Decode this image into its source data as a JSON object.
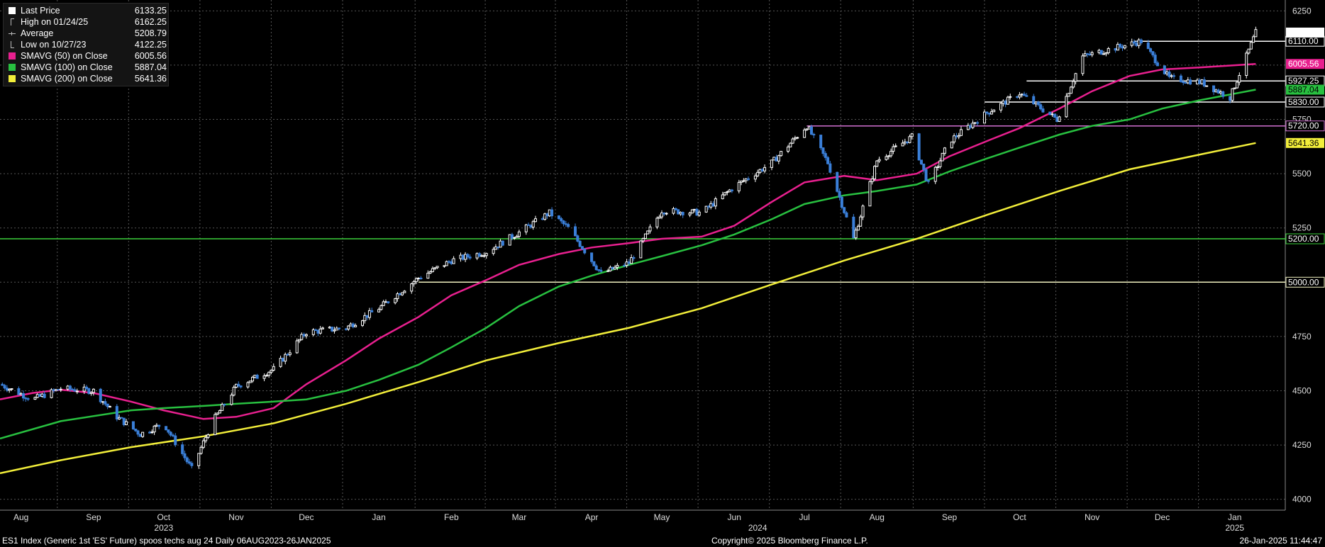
{
  "legend": {
    "items": [
      {
        "label": "Last Price",
        "value": "6133.25",
        "symbol": "square",
        "color": "#ffffff"
      },
      {
        "label": "High on 01/24/25",
        "value": "6162.25",
        "symbol": "high-tick",
        "color": "#bbbbbb"
      },
      {
        "label": "Average",
        "value": "5208.79",
        "symbol": "avg-tick",
        "color": "#bbbbbb"
      },
      {
        "label": "Low on 10/27/23",
        "value": "4122.25",
        "symbol": "low-tick",
        "color": "#bbbbbb"
      },
      {
        "label": "SMAVG (50)  on Close",
        "value": "6005.56",
        "symbol": "square",
        "color": "#e8208f"
      },
      {
        "label": "SMAVG (100)  on Close",
        "value": "5887.04",
        "symbol": "square",
        "color": "#28c040"
      },
      {
        "label": "SMAVG (200)  on Close",
        "value": "5641.36",
        "symbol": "square",
        "color": "#f2ee3a"
      }
    ]
  },
  "footer": {
    "left": "ES1 Index (Generic 1st 'ES' Future) spoos techs aug 24  Daily 06AUG2023-26JAN2025",
    "center": "Copyright© 2025 Bloomberg Finance L.P.",
    "right": "26-Jan-2025 11:44:47"
  },
  "chart_data": {
    "type": "line",
    "grid": true,
    "ylim": [
      3950,
      6300
    ],
    "yticks": [
      4000,
      4250,
      4500,
      4750,
      5000,
      5250,
      5500,
      5750,
      6000,
      6250
    ],
    "ytick_labels": [
      "4000",
      "4250",
      "4500",
      "4750",
      "5000",
      "5250",
      "5500",
      "5750",
      "6000",
      "6250"
    ],
    "xlim": [
      "2023-08-06",
      "2025-01-26"
    ],
    "month_labels": [
      {
        "label": "Aug",
        "date": "2023-08-15"
      },
      {
        "label": "Sep",
        "date": "2023-09-15"
      },
      {
        "label": "Oct",
        "date": "2023-10-15"
      },
      {
        "label": "Nov",
        "date": "2023-11-15"
      },
      {
        "label": "Dec",
        "date": "2023-12-15"
      },
      {
        "label": "Jan",
        "date": "2024-01-15"
      },
      {
        "label": "Feb",
        "date": "2024-02-15"
      },
      {
        "label": "Mar",
        "date": "2024-03-15"
      },
      {
        "label": "Apr",
        "date": "2024-04-15"
      },
      {
        "label": "May",
        "date": "2024-05-15"
      },
      {
        "label": "Jun",
        "date": "2024-06-15"
      },
      {
        "label": "Jul",
        "date": "2024-07-15"
      },
      {
        "label": "Aug",
        "date": "2024-08-15"
      },
      {
        "label": "Sep",
        "date": "2024-09-15"
      },
      {
        "label": "Oct",
        "date": "2024-10-15"
      },
      {
        "label": "Nov",
        "date": "2024-11-15"
      },
      {
        "label": "Dec",
        "date": "2024-12-15"
      },
      {
        "label": "Jan",
        "date": "2025-01-15"
      }
    ],
    "year_labels": [
      {
        "label": "2023",
        "date": "2023-10-15"
      },
      {
        "label": "2024",
        "date": "2024-06-25"
      },
      {
        "label": "2025",
        "date": "2025-01-15"
      }
    ],
    "horizontal_levels": [
      {
        "value": 6110.0,
        "label": "6110.00",
        "color": "#ffffff",
        "start": "2024-12-03"
      },
      {
        "value": 5927.25,
        "label": "5927.25",
        "color": "#ffffff",
        "start": "2024-10-18"
      },
      {
        "value": 5830.0,
        "label": "5830.00",
        "color": "#ffffff",
        "start": "2024-09-30"
      },
      {
        "value": 5720.0,
        "label": "5720.00",
        "color": "#d070d0",
        "start": "2024-07-16"
      },
      {
        "value": 5200.0,
        "label": "5200.00",
        "color": "#3cd03c",
        "start": "2023-08-06"
      },
      {
        "value": 5000.0,
        "label": "5000.00",
        "color": "#f0f0c0",
        "start": "2024-02-01"
      }
    ],
    "right_badges": [
      {
        "value": 6005.56,
        "label": "6005.56",
        "bg": "#e8208f",
        "fg": "#ffffff"
      },
      {
        "value": 5887.04,
        "label": "5887.04",
        "bg": "#28c040",
        "fg": "#000000"
      },
      {
        "value": 5641.36,
        "label": "5641.36",
        "bg": "#f2ee3a",
        "fg": "#000000"
      }
    ],
    "series": [
      {
        "name": "Last Price",
        "style": "candle",
        "color_up": "#ffffff",
        "color_down": "#3a7fd8",
        "x": [
          "2023-08-06",
          "2023-08-20",
          "2023-09-01",
          "2023-09-15",
          "2023-09-25",
          "2023-10-05",
          "2023-10-15",
          "2023-10-27",
          "2023-11-05",
          "2023-11-15",
          "2023-12-01",
          "2023-12-15",
          "2024-01-01",
          "2024-01-15",
          "2024-02-01",
          "2024-02-15",
          "2024-03-01",
          "2024-03-15",
          "2024-03-28",
          "2024-04-05",
          "2024-04-19",
          "2024-05-01",
          "2024-05-15",
          "2024-06-01",
          "2024-06-15",
          "2024-07-01",
          "2024-07-16",
          "2024-07-25",
          "2024-08-05",
          "2024-08-15",
          "2024-08-30",
          "2024-09-06",
          "2024-09-15",
          "2024-10-01",
          "2024-10-15",
          "2024-10-31",
          "2024-11-11",
          "2024-11-25",
          "2024-12-06",
          "2024-12-18",
          "2025-01-01",
          "2025-01-13",
          "2025-01-24"
        ],
        "values": [
          4530,
          4460,
          4510,
          4500,
          4380,
          4300,
          4350,
          4140,
          4360,
          4520,
          4600,
          4770,
          4790,
          4880,
          5020,
          5100,
          5140,
          5230,
          5320,
          5250,
          5040,
          5090,
          5330,
          5320,
          5440,
          5550,
          5720,
          5550,
          5200,
          5560,
          5670,
          5450,
          5650,
          5780,
          5870,
          5750,
          6040,
          6080,
          6110,
          5940,
          5920,
          5850,
          6150
        ]
      },
      {
        "name": "SMAVG (50)  on Close",
        "style": "line",
        "color": "#e8208f",
        "x": [
          "2023-08-06",
          "2023-08-20",
          "2023-09-01",
          "2023-09-15",
          "2023-10-01",
          "2023-10-15",
          "2023-11-01",
          "2023-11-15",
          "2023-12-01",
          "2023-12-15",
          "2024-01-01",
          "2024-01-15",
          "2024-02-01",
          "2024-02-15",
          "2024-03-01",
          "2024-03-15",
          "2024-04-01",
          "2024-04-15",
          "2024-05-01",
          "2024-05-15",
          "2024-06-01",
          "2024-06-15",
          "2024-07-01",
          "2024-07-15",
          "2024-08-01",
          "2024-08-15",
          "2024-09-01",
          "2024-09-15",
          "2024-10-01",
          "2024-10-15",
          "2024-11-01",
          "2024-11-15",
          "2024-12-01",
          "2024-12-15",
          "2025-01-01",
          "2025-01-24"
        ],
        "values": [
          4460,
          4490,
          4505,
          4490,
          4450,
          4410,
          4370,
          4380,
          4420,
          4530,
          4640,
          4740,
          4840,
          4940,
          5010,
          5080,
          5130,
          5160,
          5180,
          5200,
          5210,
          5260,
          5370,
          5460,
          5490,
          5470,
          5500,
          5580,
          5650,
          5710,
          5800,
          5880,
          5950,
          5980,
          5990,
          6005.56
        ]
      },
      {
        "name": "SMAVG (100)  on Close",
        "style": "line",
        "color": "#28c040",
        "x": [
          "2023-08-06",
          "2023-09-01",
          "2023-10-01",
          "2023-10-15",
          "2023-11-01",
          "2023-11-15",
          "2023-12-01",
          "2023-12-15",
          "2024-01-01",
          "2024-01-15",
          "2024-02-01",
          "2024-02-15",
          "2024-03-01",
          "2024-03-15",
          "2024-04-01",
          "2024-04-15",
          "2024-05-01",
          "2024-05-15",
          "2024-06-01",
          "2024-06-15",
          "2024-07-01",
          "2024-07-15",
          "2024-08-01",
          "2024-08-15",
          "2024-09-01",
          "2024-09-15",
          "2024-10-01",
          "2024-10-15",
          "2024-11-01",
          "2024-11-15",
          "2024-12-01",
          "2024-12-15",
          "2025-01-01",
          "2025-01-24"
        ],
        "values": [
          4280,
          4360,
          4410,
          4420,
          4430,
          4440,
          4450,
          4460,
          4500,
          4550,
          4620,
          4700,
          4790,
          4890,
          4980,
          5030,
          5080,
          5120,
          5170,
          5220,
          5290,
          5360,
          5400,
          5420,
          5450,
          5510,
          5570,
          5620,
          5680,
          5720,
          5750,
          5800,
          5840,
          5887.04
        ]
      },
      {
        "name": "SMAVG (200)  on Close",
        "style": "line",
        "color": "#f2ee3a",
        "x": [
          "2023-08-06",
          "2023-09-01",
          "2023-10-01",
          "2023-11-01",
          "2023-12-01",
          "2024-01-01",
          "2024-02-01",
          "2024-03-01",
          "2024-04-01",
          "2024-05-01",
          "2024-06-01",
          "2024-07-01",
          "2024-08-01",
          "2024-09-01",
          "2024-10-01",
          "2024-11-01",
          "2024-12-01",
          "2025-01-01",
          "2025-01-24"
        ],
        "values": [
          4120,
          4180,
          4240,
          4290,
          4350,
          4440,
          4540,
          4640,
          4720,
          4790,
          4880,
          4990,
          5100,
          5200,
          5310,
          5420,
          5520,
          5590,
          5641.36
        ]
      }
    ]
  }
}
